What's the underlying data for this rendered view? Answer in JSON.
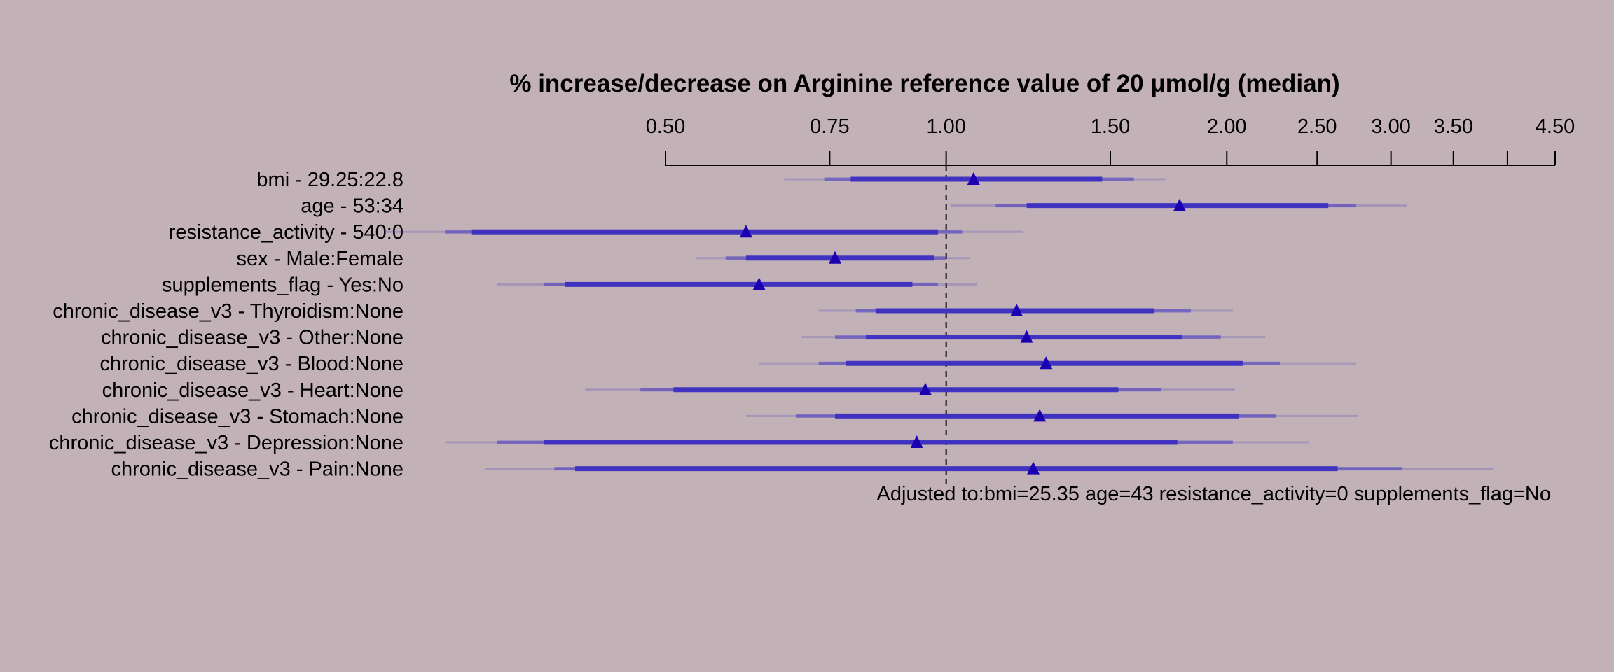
{
  "chart_data": {
    "type": "forest",
    "title": "% increase/decrease on Arginine reference value of 20 μmol/g (median)",
    "xscale": "log",
    "xlim": [
      0.5,
      4.5
    ],
    "reference_line": 1.0,
    "x_ticks": [
      {
        "value": 0.5,
        "label": "0.50"
      },
      {
        "value": 0.75,
        "label": "0.75"
      },
      {
        "value": 1.0,
        "label": "1.00"
      },
      {
        "value": 1.5,
        "label": "1.50"
      },
      {
        "value": 2.0,
        "label": "2.00"
      },
      {
        "value": 2.5,
        "label": "2.50"
      },
      {
        "value": 3.0,
        "label": "3.00"
      },
      {
        "value": 3.5,
        "label": "3.50"
      },
      {
        "value": 4.0,
        "label": ""
      },
      {
        "value": 4.5,
        "label": "4.50"
      }
    ],
    "rows": [
      {
        "label": "bmi - 29.25:22.8",
        "estimate": 1.07,
        "ci_inner": [
          0.79,
          1.47
        ],
        "ci_mid": [
          0.74,
          1.59
        ],
        "ci_outer": [
          0.67,
          1.72
        ]
      },
      {
        "label": "age - 53:34",
        "estimate": 1.78,
        "ci_inner": [
          1.22,
          2.57
        ],
        "ci_mid": [
          1.13,
          2.75
        ],
        "ci_outer": [
          1.01,
          3.12
        ]
      },
      {
        "label": "resistance_activity - 540:0",
        "estimate": 0.61,
        "ci_inner": [
          0.31,
          0.98
        ],
        "ci_mid": [
          0.29,
          1.04
        ],
        "ci_outer": [
          0.25,
          1.21
        ]
      },
      {
        "label": "sex - Male:Female",
        "estimate": 0.76,
        "ci_inner": [
          0.61,
          0.97
        ],
        "ci_mid": [
          0.58,
          1.0
        ],
        "ci_outer": [
          0.54,
          1.06
        ]
      },
      {
        "label": "supplements_flag - Yes:No",
        "estimate": 0.63,
        "ci_inner": [
          0.39,
          0.92
        ],
        "ci_mid": [
          0.37,
          0.98
        ],
        "ci_outer": [
          0.33,
          1.08
        ]
      },
      {
        "label": "chronic_disease_v3 - Thyroidism:None",
        "estimate": 1.19,
        "ci_inner": [
          0.84,
          1.67
        ],
        "ci_mid": [
          0.8,
          1.83
        ],
        "ci_outer": [
          0.73,
          2.03
        ]
      },
      {
        "label": "chronic_disease_v3 - Other:None",
        "estimate": 1.22,
        "ci_inner": [
          0.82,
          1.79
        ],
        "ci_mid": [
          0.76,
          1.97
        ],
        "ci_outer": [
          0.7,
          2.2
        ]
      },
      {
        "label": "chronic_disease_v3 - Blood:None",
        "estimate": 1.28,
        "ci_inner": [
          0.78,
          2.08
        ],
        "ci_mid": [
          0.73,
          2.28
        ],
        "ci_outer": [
          0.63,
          2.75
        ]
      },
      {
        "label": "chronic_disease_v3 - Heart:None",
        "estimate": 0.95,
        "ci_inner": [
          0.51,
          1.53
        ],
        "ci_mid": [
          0.47,
          1.7
        ],
        "ci_outer": [
          0.41,
          2.04
        ]
      },
      {
        "label": "chronic_disease_v3 - Stomach:None",
        "estimate": 1.26,
        "ci_inner": [
          0.76,
          2.06
        ],
        "ci_mid": [
          0.69,
          2.26
        ],
        "ci_outer": [
          0.61,
          2.76
        ]
      },
      {
        "label": "chronic_disease_v3 - Depression:None",
        "estimate": 0.93,
        "ci_inner": [
          0.37,
          1.77
        ],
        "ci_mid": [
          0.33,
          2.03
        ],
        "ci_outer": [
          0.29,
          2.45
        ]
      },
      {
        "label": "chronic_disease_v3 - Pain:None",
        "estimate": 1.24,
        "ci_inner": [
          0.4,
          2.63
        ],
        "ci_mid": [
          0.38,
          3.08
        ],
        "ci_outer": [
          0.32,
          3.86
        ]
      }
    ],
    "footnote": "Adjusted to:bmi=25.35 age=43 resistance_activity=0 supplements_flag=No",
    "colors": {
      "background": "#c2b2b8",
      "bar": "#3d2fc0",
      "marker": "#1a00b0",
      "axis": "#000000"
    }
  }
}
